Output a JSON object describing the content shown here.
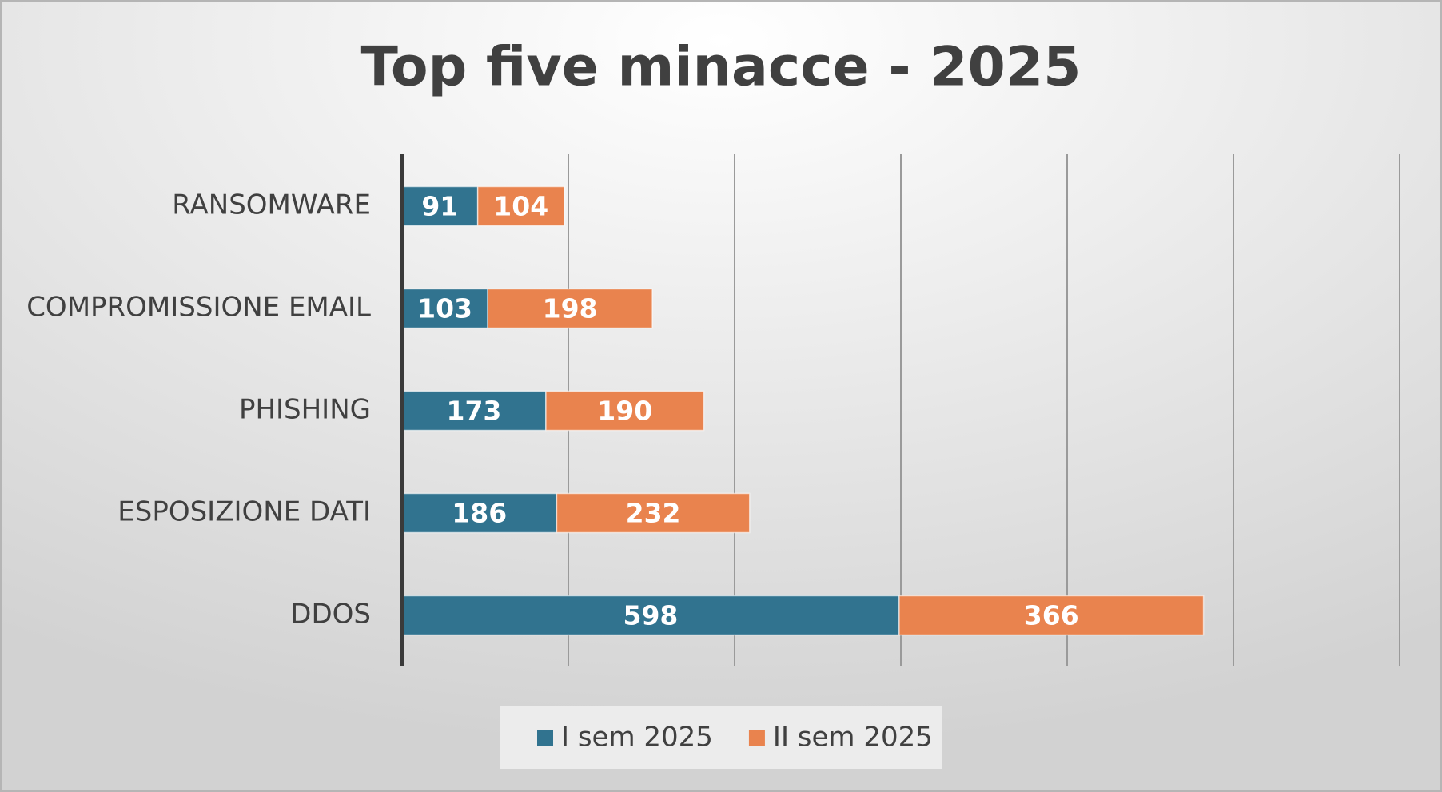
{
  "chart_data": {
    "type": "stacked-barh",
    "title": "Top five minacce - 2025",
    "categories": [
      "RANSOMWARE",
      "COMPROMISSIONE EMAIL",
      "PHISHING",
      "ESPOSIZIONE DATI",
      "DDOS"
    ],
    "series": [
      {
        "name": "I sem 2025",
        "color": "#31738f",
        "values": [
          91,
          103,
          173,
          186,
          598
        ]
      },
      {
        "name": "II sem 2025",
        "color": "#e9834e",
        "values": [
          104,
          198,
          190,
          232,
          366
        ]
      }
    ],
    "xlim": [
      0,
      1200
    ],
    "xticks": [
      0,
      200,
      400,
      600,
      800,
      1000,
      1200
    ],
    "xtick_labels": false,
    "grid": true,
    "legend": "bottom"
  }
}
